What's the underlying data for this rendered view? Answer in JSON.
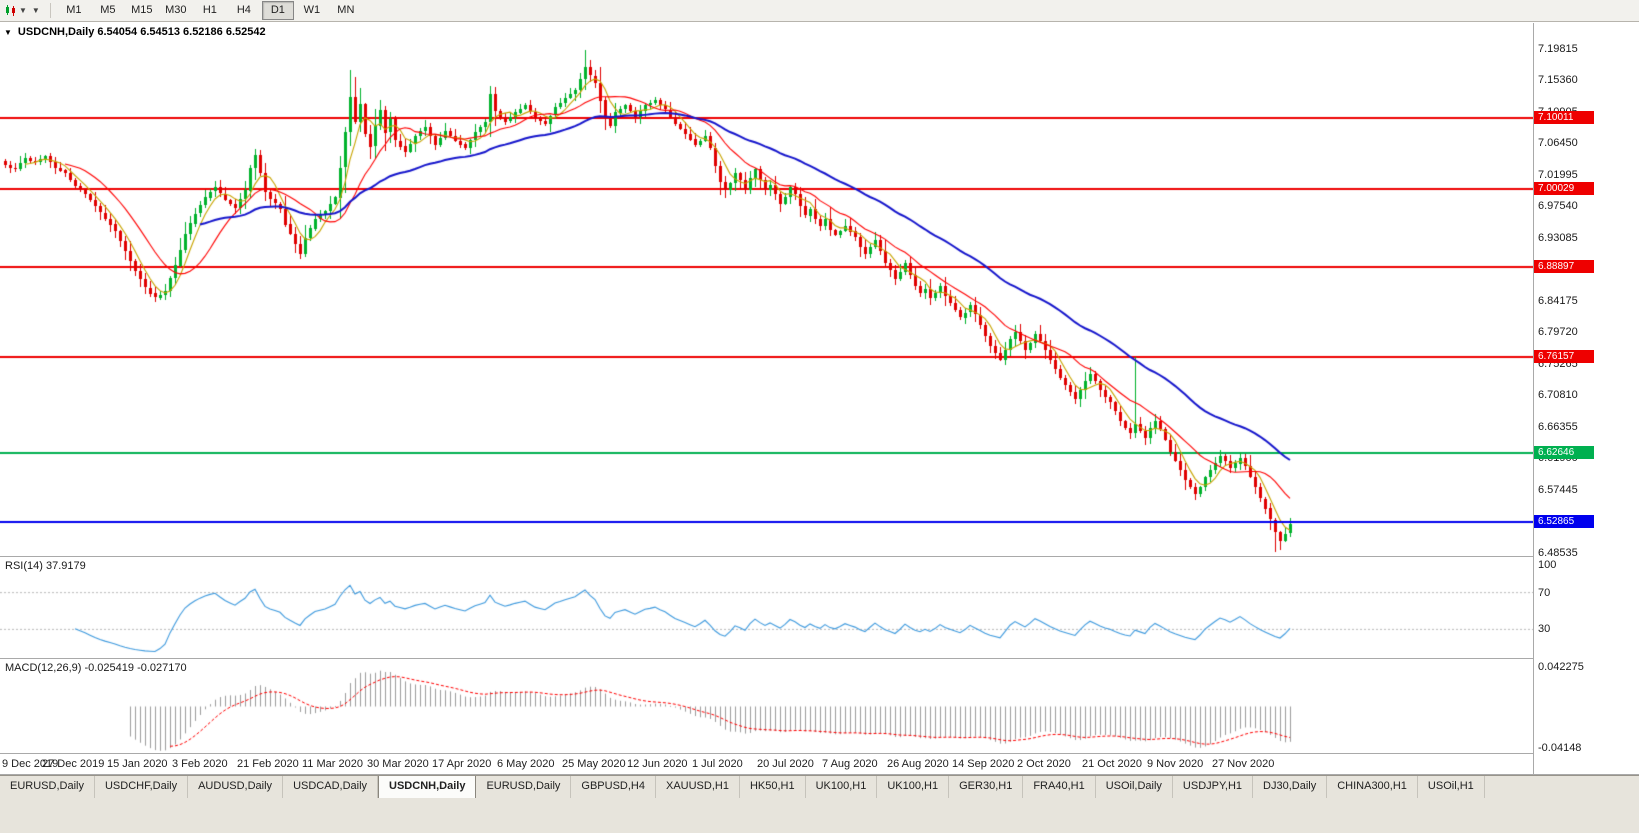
{
  "toolbar": {
    "timeframes": [
      {
        "label": "M1",
        "active": false
      },
      {
        "label": "M5",
        "active": false
      },
      {
        "label": "M15",
        "active": false
      },
      {
        "label": "M30",
        "active": false
      },
      {
        "label": "H1",
        "active": false
      },
      {
        "label": "H4",
        "active": false
      },
      {
        "label": "D1",
        "active": true
      },
      {
        "label": "W1",
        "active": false
      },
      {
        "label": "MN",
        "active": false
      }
    ]
  },
  "chart": {
    "symbol": "USDCNH",
    "timeframe": "Daily",
    "open": "6.54054",
    "high": "6.54513",
    "low": "6.52186",
    "close": "6.52542",
    "info_line": "USDCNH,Daily 6.54054 6.54513 6.52186 6.52542"
  },
  "rsi": {
    "label": "RSI(14) 37.9179",
    "value": 37.9179,
    "levels": [
      100,
      70,
      30
    ]
  },
  "macd": {
    "label": "MACD(12,26,9) -0.025419 -0.027170",
    "main": -0.025419,
    "signal": -0.02717,
    "axis_max": "0.042275",
    "axis_min": "-0.04148"
  },
  "tabs": {
    "active_index": 4,
    "items": [
      "EURUSD,Daily",
      "USDCHF,Daily",
      "AUDUSD,Daily",
      "USDCAD,Daily",
      "USDCNH,Daily",
      "EURUSD,Daily",
      "GBPUSD,H4",
      "XAUUSD,H1",
      "HK50,H1",
      "UK100,H1",
      "UK100,H1",
      "GER30,H1",
      "FRA40,H1",
      "USOil,Daily",
      "USDJPY,H1",
      "DJ30,Daily",
      "CHINA300,H1",
      "USOil,H1"
    ]
  },
  "chart_data": {
    "type": "candlestick",
    "title": "USDCNH,Daily",
    "symbol": "USDCNH",
    "timeframe": "D1",
    "ylim": [
      6.4808,
      7.2104
    ],
    "grid": false,
    "y_axis_ticks": [
      "7.19815",
      "7.15360",
      "7.10905",
      "7.06450",
      "7.01995",
      "6.97540",
      "6.93085",
      "6.88630",
      "6.84175",
      "6.79720",
      "6.75265",
      "6.70810",
      "6.66355",
      "6.61900",
      "6.57445",
      "6.52990",
      "6.48535"
    ],
    "x_tick_labels": [
      "9 Dec 2019",
      "27 Dec 2019",
      "15 Jan 2020",
      "3 Feb 2020",
      "21 Feb 2020",
      "11 Mar 2020",
      "30 Mar 2020",
      "17 Apr 2020",
      "6 May 2020",
      "25 May 2020",
      "12 Jun 2020",
      "1 Jul 2020",
      "20 Jul 2020",
      "7 Aug 2020",
      "26 Aug 2020",
      "14 Sep 2020",
      "2 Oct 2020",
      "21 Oct 2020",
      "9 Nov 2020",
      "27 Nov 2020"
    ],
    "bars_per_x_tick": 13,
    "current_bar": {
      "open": 6.54054,
      "high": 6.54513,
      "low": 6.52186,
      "close": 6.52542
    },
    "first_open": 7.04,
    "closes": [
      7.034,
      7.03,
      7.028,
      7.037,
      7.044,
      7.04,
      7.038,
      7.042,
      7.046,
      7.038,
      7.03,
      7.026,
      7.022,
      7.012,
      7.004,
      6.998,
      6.992,
      6.984,
      6.975,
      6.966,
      6.958,
      6.95,
      6.94,
      6.926,
      6.912,
      6.898,
      6.884,
      6.872,
      6.86,
      6.852,
      6.846,
      6.85,
      6.856,
      6.874,
      6.892,
      6.914,
      6.936,
      6.951,
      6.965,
      6.977,
      6.988,
      6.996,
      7.002,
      6.993,
      6.984,
      6.978,
      6.972,
      6.985,
      6.998,
      7.03,
      7.048,
      7.022,
      6.995,
      6.985,
      6.979,
      6.972,
      6.95,
      6.936,
      6.922,
      6.908,
      6.93,
      6.944,
      6.958,
      6.963,
      6.968,
      6.978,
      6.988,
      7.03,
      7.08,
      7.13,
      7.095,
      7.12,
      7.078,
      7.06,
      7.09,
      7.112,
      7.08,
      7.098,
      7.068,
      7.06,
      7.052,
      7.063,
      7.075,
      7.082,
      7.088,
      7.075,
      7.062,
      7.072,
      7.082,
      7.075,
      7.068,
      7.063,
      7.058,
      7.069,
      7.08,
      7.087,
      7.094,
      7.134,
      7.11,
      7.102,
      7.095,
      7.101,
      7.108,
      7.113,
      7.118,
      7.109,
      7.1,
      7.096,
      7.092,
      7.103,
      7.115,
      7.121,
      7.128,
      7.134,
      7.14,
      7.155,
      7.172,
      7.16,
      7.15,
      7.125,
      7.098,
      7.088,
      7.108,
      7.113,
      7.118,
      7.11,
      7.102,
      7.11,
      7.118,
      7.121,
      7.125,
      7.118,
      7.112,
      7.102,
      7.092,
      7.085,
      7.078,
      7.07,
      7.062,
      7.068,
      7.075,
      7.058,
      7.032,
      7.01,
      6.998,
      7.008,
      7.022,
      7.012,
      6.998,
      7.015,
      7.028,
      7.012,
      6.998,
      7.005,
      6.992,
      6.978,
      6.988,
      7.002,
      6.992,
      6.975,
      6.962,
      6.972,
      6.958,
      6.948,
      6.958,
      6.942,
      6.935,
      6.941,
      6.948,
      6.94,
      6.932,
      6.918,
      6.908,
      6.918,
      6.928,
      6.912,
      6.895,
      6.885,
      6.872,
      6.882,
      6.895,
      6.878,
      6.862,
      6.852,
      6.858,
      6.845,
      6.852,
      6.862,
      6.848,
      6.838,
      6.828,
      6.818,
      6.825,
      6.835,
      6.822,
      6.808,
      6.792,
      6.778,
      6.768,
      6.758,
      6.772,
      6.788,
      6.798,
      6.785,
      6.772,
      6.782,
      6.795,
      6.785,
      6.772,
      6.758,
      6.745,
      6.732,
      6.722,
      6.712,
      6.702,
      6.715,
      6.728,
      6.738,
      6.728,
      6.715,
      6.705,
      6.698,
      6.685,
      6.672,
      6.662,
      6.655,
      6.668,
      6.658,
      6.648,
      6.662,
      6.672,
      6.66,
      6.645,
      6.628,
      6.615,
      6.602,
      6.588,
      6.578,
      6.568,
      6.578,
      6.592,
      6.602,
      6.612,
      6.622,
      6.615,
      6.605,
      6.612,
      6.62,
      6.608,
      6.592,
      6.578,
      6.562,
      6.548,
      6.532,
      6.515,
      6.502,
      6.512,
      6.5254
    ],
    "wick_overrides": {
      "30": {
        "low": 6.8405
      },
      "59": {
        "low": 6.901
      },
      "69": {
        "high": 7.168
      },
      "97": {
        "high": 7.145
      },
      "116": {
        "high": 7.1965
      },
      "199": {
        "low": 6.756
      },
      "226": {
        "high": 6.762
      },
      "238": {
        "low": 6.56
      },
      "254": {
        "low": 6.4862
      }
    },
    "horizontal_lines": [
      {
        "price": 7.10011,
        "label": "7.10011",
        "color": "#EE0000",
        "width": 2,
        "role": "resistance"
      },
      {
        "price": 7.00029,
        "label": "7.00029",
        "color": "#EE0000",
        "width": 2,
        "role": "resistance"
      },
      {
        "price": 6.88897,
        "label": "6.88897",
        "color": "#EE0000",
        "width": 2,
        "role": "resistance"
      },
      {
        "price": 6.76157,
        "label": "6.76157",
        "color": "#EE0000",
        "width": 2,
        "role": "resistance"
      },
      {
        "price": 6.62646,
        "label": "6.62646",
        "color": "#00B050",
        "width": 2,
        "role": "support"
      },
      {
        "price": 6.52865,
        "label": "6.52865",
        "color": "#0000EE",
        "width": 2,
        "role": "current-price"
      }
    ],
    "moving_averages": [
      {
        "period": 5,
        "type": "sma",
        "color": "#C8A400"
      },
      {
        "period": 13,
        "type": "sma",
        "color": "#FF0000"
      },
      {
        "period": 40,
        "type": "ema",
        "color": "#1616CC"
      }
    ],
    "indicators": [
      {
        "name": "RSI",
        "params": "14",
        "value": 37.9179,
        "levels": [
          70,
          30
        ],
        "color": "#3E9ADE"
      },
      {
        "name": "MACD",
        "params": "12,26,9",
        "main": -0.025419,
        "signal": -0.02717,
        "axis_max": "0.042275",
        "axis_min": "-0.04148",
        "histogram_color": "#9B9B9B",
        "signal_color": "#FF0000"
      }
    ],
    "colors": {
      "up": "#00B22C",
      "down": "#E00000",
      "background": "#FFFFFF",
      "axis_text": "#1A1A1A"
    }
  }
}
